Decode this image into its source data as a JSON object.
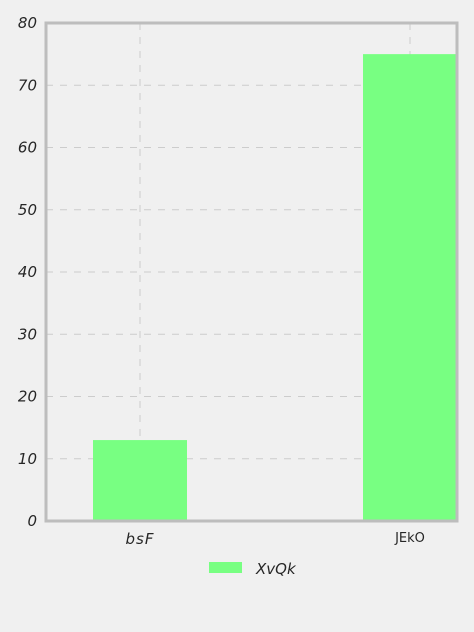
{
  "chart_data": {
    "type": "bar",
    "categories": [
      "bsF",
      "JEkO"
    ],
    "series": [
      {
        "name": "XvQk",
        "values": [
          13,
          75
        ],
        "color": "#78ff82"
      }
    ],
    "ylim": [
      0,
      80
    ],
    "yticks": [
      "0",
      "10",
      "20",
      "30",
      "40",
      "50",
      "60",
      "70",
      "80"
    ],
    "grid": true,
    "legend_position": "bottom-center"
  }
}
